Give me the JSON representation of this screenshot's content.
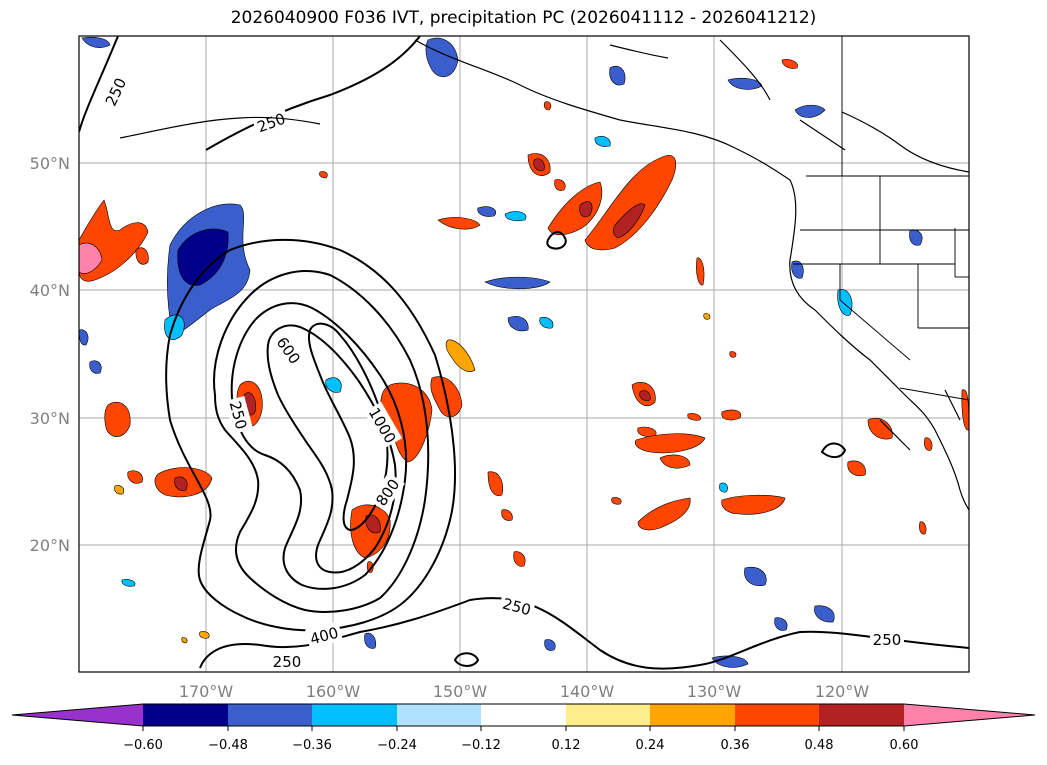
{
  "title": "2026040900 F036 IVT, precipitation PC (2026041112 - 2026041212)",
  "lat_labels": [
    "50°N",
    "40°N",
    "30°N",
    "20°N"
  ],
  "lon_labels": [
    "170°W",
    "160°W",
    "150°W",
    "140°W",
    "130°W",
    "120°W"
  ],
  "contour_labels": [
    "250",
    "250",
    "600",
    "250",
    "1000",
    "800",
    "250",
    "400",
    "250",
    "250"
  ],
  "colorbar": {
    "tick_labels": [
      "−0.60",
      "−0.48",
      "−0.36",
      "−0.24",
      "−0.12",
      "0.12",
      "0.24",
      "0.36",
      "0.48",
      "0.60"
    ],
    "colors": [
      "#9932cc",
      "#00008b",
      "#3a5fcd",
      "#00bfff",
      "#b0e2ff",
      "#ffffff",
      "#ffec8b",
      "#ffa500",
      "#ff4500",
      "#b22222",
      "#ff82ab"
    ]
  },
  "colors": {
    "contour": "#000000",
    "grid": "#aaaaaa",
    "axis_text": "#808080"
  }
}
